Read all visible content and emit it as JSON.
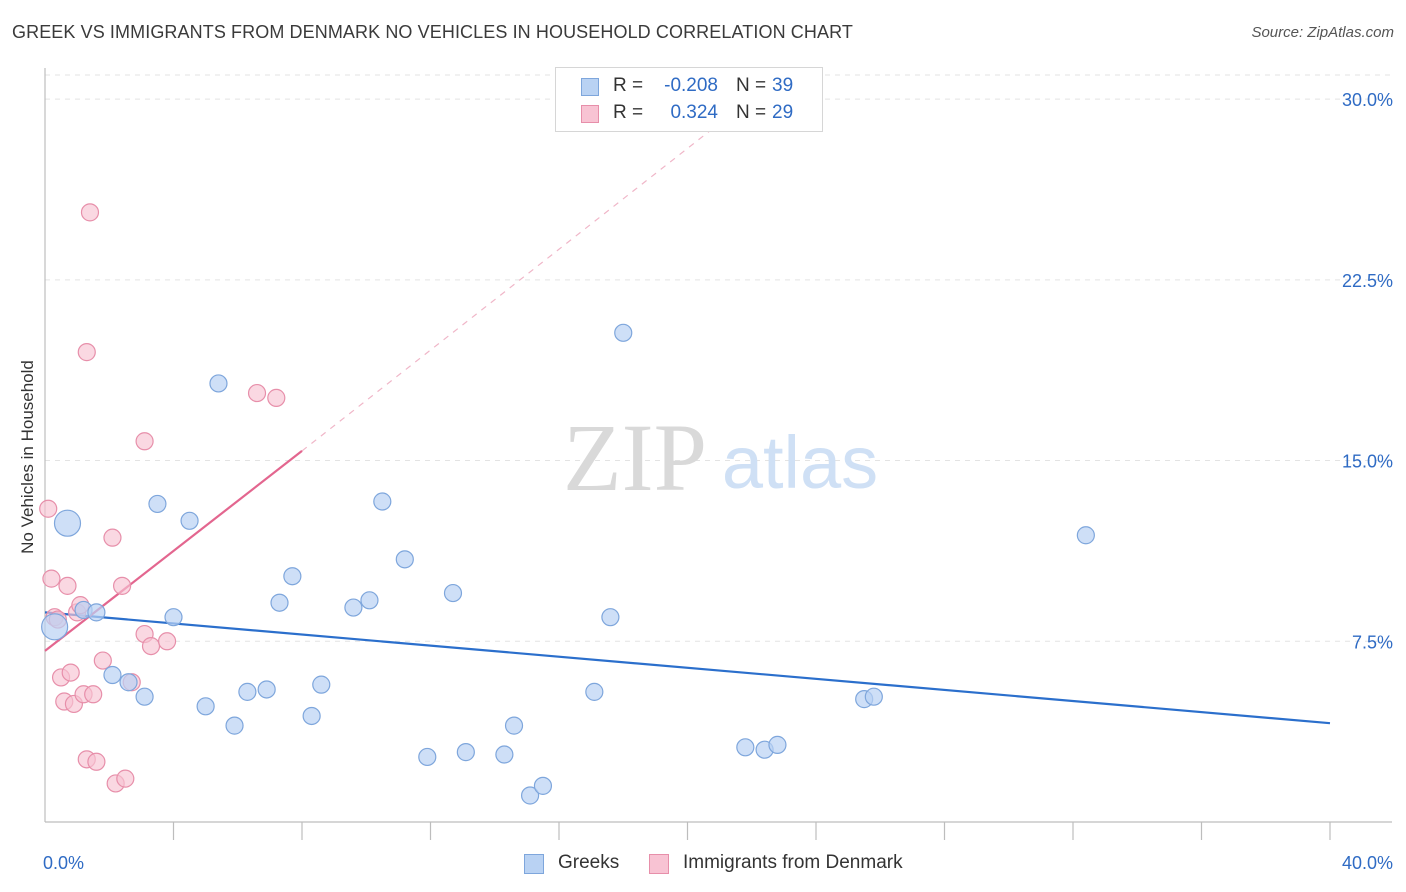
{
  "header": {
    "title": "GREEK VS IMMIGRANTS FROM DENMARK NO VEHICLES IN HOUSEHOLD CORRELATION CHART",
    "source": "Source: ZipAtlas.com"
  },
  "legend_top": {
    "rows": [
      {
        "r_label": "R =",
        "r_value": "-0.208",
        "n_label": "N =",
        "n_value": "39"
      },
      {
        "r_label": "R =",
        "r_value": "0.324",
        "n_label": "N =",
        "n_value": "29"
      }
    ]
  },
  "legend_bottom": {
    "items": [
      {
        "label": "Greeks"
      },
      {
        "label": "Immigrants from Denmark"
      }
    ]
  },
  "watermark": {
    "part1": "ZIP",
    "part2": "atlas"
  },
  "colors": {
    "blue_fill": "#b9d2f3",
    "blue_stroke": "#7ea6dc",
    "blue_line": "#2b6fcc",
    "pink_fill": "#f8c3d3",
    "pink_stroke": "#e78faa",
    "pink_line": "#e3668f",
    "tick_label": "#2f6bc4",
    "grid": "#e3e3e3"
  },
  "chart_data": {
    "type": "scatter",
    "title": "GREEK VS IMMIGRANTS FROM DENMARK NO VEHICLES IN HOUSEHOLD CORRELATION CHART",
    "xlabel": "",
    "ylabel": "No Vehicles in Household",
    "xlim": [
      0,
      40
    ],
    "ylim": [
      0,
      31
    ],
    "x_tick_labels": [
      "0.0%",
      "40.0%"
    ],
    "y_ticks": [
      7.5,
      15.0,
      22.5,
      30.0
    ],
    "y_tick_labels": [
      "7.5%",
      "15.0%",
      "22.5%",
      "30.0%"
    ],
    "grid": true,
    "legend_placement": "top-center",
    "series": [
      {
        "name": "Greeks",
        "r": -0.208,
        "n": 39,
        "trend": {
          "x": [
            0,
            40
          ],
          "y": [
            8.7,
            4.1
          ],
          "dashed_extension": false
        },
        "points": [
          {
            "x": 0.3,
            "y": 8.1,
            "big": true
          },
          {
            "x": 0.7,
            "y": 12.4,
            "big": true
          },
          {
            "x": 1.2,
            "y": 8.8
          },
          {
            "x": 1.6,
            "y": 8.7
          },
          {
            "x": 2.1,
            "y": 6.1
          },
          {
            "x": 2.6,
            "y": 5.8
          },
          {
            "x": 3.1,
            "y": 5.2
          },
          {
            "x": 3.5,
            "y": 13.2
          },
          {
            "x": 4.0,
            "y": 8.5
          },
          {
            "x": 4.5,
            "y": 12.5
          },
          {
            "x": 5.0,
            "y": 4.8
          },
          {
            "x": 5.4,
            "y": 18.2
          },
          {
            "x": 5.9,
            "y": 4.0
          },
          {
            "x": 6.3,
            "y": 5.4
          },
          {
            "x": 6.9,
            "y": 5.5
          },
          {
            "x": 7.3,
            "y": 9.1
          },
          {
            "x": 7.7,
            "y": 10.2
          },
          {
            "x": 8.3,
            "y": 4.4
          },
          {
            "x": 8.6,
            "y": 5.7
          },
          {
            "x": 9.6,
            "y": 8.9
          },
          {
            "x": 10.1,
            "y": 9.2
          },
          {
            "x": 10.5,
            "y": 13.3
          },
          {
            "x": 11.2,
            "y": 10.9
          },
          {
            "x": 11.9,
            "y": 2.7
          },
          {
            "x": 12.7,
            "y": 9.5
          },
          {
            "x": 13.1,
            "y": 2.9
          },
          {
            "x": 14.3,
            "y": 2.8
          },
          {
            "x": 14.6,
            "y": 4.0
          },
          {
            "x": 15.1,
            "y": 1.1
          },
          {
            "x": 15.5,
            "y": 1.5
          },
          {
            "x": 17.1,
            "y": 5.4
          },
          {
            "x": 17.6,
            "y": 8.5
          },
          {
            "x": 18.0,
            "y": 20.3
          },
          {
            "x": 21.8,
            "y": 3.1
          },
          {
            "x": 22.4,
            "y": 3.0
          },
          {
            "x": 22.8,
            "y": 3.2
          },
          {
            "x": 25.5,
            "y": 5.1
          },
          {
            "x": 25.8,
            "y": 5.2
          },
          {
            "x": 32.4,
            "y": 11.9
          }
        ]
      },
      {
        "name": "Immigrants from Denmark",
        "r": 0.324,
        "n": 29,
        "trend": {
          "x": [
            0,
            8.0
          ],
          "y": [
            7.1,
            15.4
          ],
          "dashed_extension_to": {
            "x": 21.0,
            "y": 29.0
          }
        },
        "points": [
          {
            "x": 0.1,
            "y": 13.0
          },
          {
            "x": 0.2,
            "y": 10.1
          },
          {
            "x": 0.3,
            "y": 8.5
          },
          {
            "x": 0.5,
            "y": 6.0
          },
          {
            "x": 0.6,
            "y": 5.0
          },
          {
            "x": 0.7,
            "y": 9.8
          },
          {
            "x": 0.8,
            "y": 6.2
          },
          {
            "x": 0.9,
            "y": 4.9
          },
          {
            "x": 1.0,
            "y": 8.7
          },
          {
            "x": 1.1,
            "y": 9.0
          },
          {
            "x": 1.2,
            "y": 5.3
          },
          {
            "x": 1.3,
            "y": 2.6
          },
          {
            "x": 1.3,
            "y": 19.5
          },
          {
            "x": 1.4,
            "y": 25.3
          },
          {
            "x": 1.5,
            "y": 5.3
          },
          {
            "x": 1.6,
            "y": 2.5
          },
          {
            "x": 1.8,
            "y": 6.7
          },
          {
            "x": 2.1,
            "y": 11.8
          },
          {
            "x": 2.2,
            "y": 1.6
          },
          {
            "x": 2.4,
            "y": 9.8
          },
          {
            "x": 2.5,
            "y": 1.8
          },
          {
            "x": 2.7,
            "y": 5.8
          },
          {
            "x": 3.1,
            "y": 15.8
          },
          {
            "x": 3.1,
            "y": 7.8
          },
          {
            "x": 3.3,
            "y": 7.3
          },
          {
            "x": 3.8,
            "y": 7.5
          },
          {
            "x": 6.6,
            "y": 17.8
          },
          {
            "x": 7.2,
            "y": 17.6
          },
          {
            "x": 0.4,
            "y": 8.4
          }
        ]
      }
    ]
  }
}
